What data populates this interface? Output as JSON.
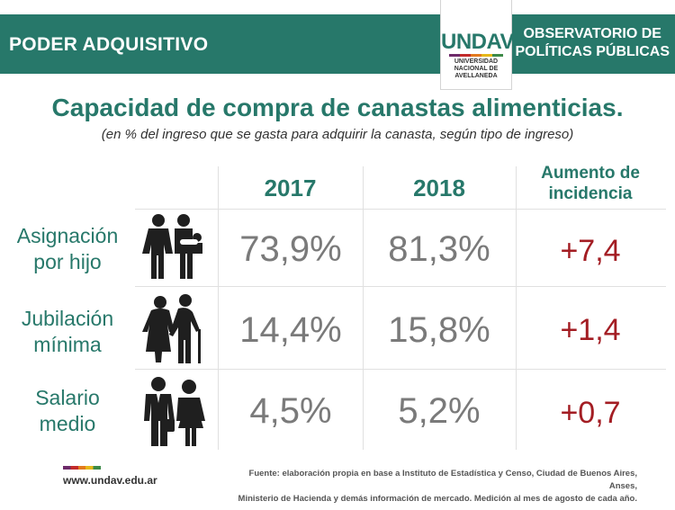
{
  "header": {
    "left_title": "PODER ADQUISITIVO",
    "right_title_line1": "OBSERVATORIO DE",
    "right_title_line2": "POLÍTICAS PÚBLICAS",
    "logo_word": "UNDAV",
    "logo_sub": "UNIVERSIDAD NACIONAL DE AVELLANEDA"
  },
  "chart_data": {
    "type": "table",
    "title": "Capacidad de compra de canastas alimenticias.",
    "subtitle": "(en % del ingreso que se gasta para adquirir la canasta, según tipo de ingreso)",
    "columns": [
      "2017",
      "2018",
      "Aumento de incidencia"
    ],
    "rows": [
      {
        "label_line1": "Asignación",
        "label_line2": "por hijo",
        "v2017": "73,9%",
        "v2018": "81,3%",
        "increase": "+7,4"
      },
      {
        "label_line1": "Jubilación",
        "label_line2": "mínima",
        "v2017": "14,4%",
        "v2018": "15,8%",
        "increase": "+1,4"
      },
      {
        "label_line1": "Salario",
        "label_line2": "medio",
        "v2017": "4,5%",
        "v2018": "5,2%",
        "increase": "+0,7"
      }
    ]
  },
  "footer": {
    "url": "www.undav.edu.ar",
    "source_line1": "Fuente: elaboración propia en base a Instituto de Estadística y Censo, Ciudad de Buenos Aires, Anses,",
    "source_line2": "Ministerio de Hacienda y demás información de mercado. Medición al mes de agosto de cada año."
  },
  "colors": {
    "brand_green": "#27786a",
    "increase_red": "#a31d23",
    "value_gray": "#7a7a7a"
  },
  "icons": [
    "family-icon",
    "elderly-couple-icon",
    "workers-icon"
  ]
}
